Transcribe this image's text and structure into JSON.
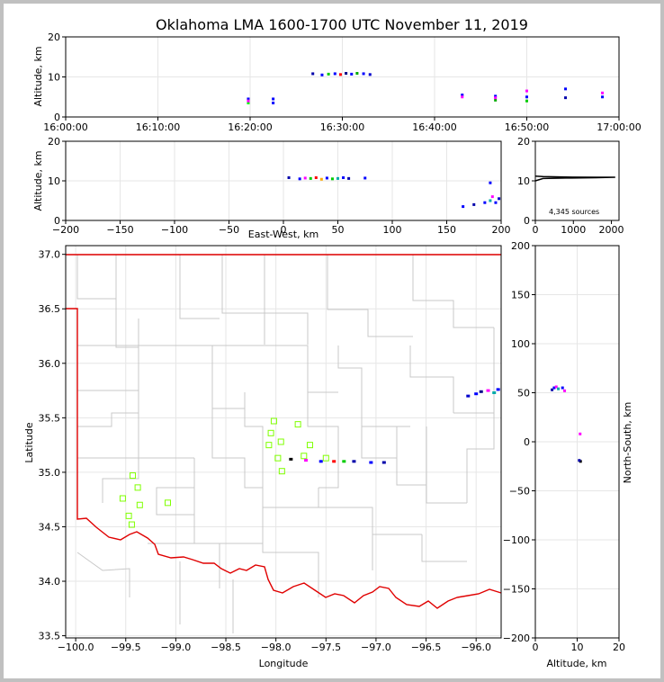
{
  "chart_data": [
    {
      "type": "scatter",
      "id": "time_altitude",
      "title": "Oklahoma LMA 1600-1700 UTC November 11, 2019",
      "ylabel": "Altitude, km",
      "xlabel": "",
      "xticks": [
        "16:00:00",
        "16:10:00",
        "16:20:00",
        "16:30:00",
        "16:40:00",
        "16:50:00",
        "17:00:00"
      ],
      "xlim_minutes": [
        0,
        60
      ],
      "ylim": [
        0,
        20
      ],
      "yticks": [
        0,
        10,
        20
      ],
      "grid": true,
      "points": [
        {
          "t": 19.8,
          "z": 4.5,
          "color": "#0000ff"
        },
        {
          "t": 19.8,
          "z": 3.5,
          "color": "#00ff00"
        },
        {
          "t": 19.8,
          "z": 4.0,
          "color": "#ff00ff"
        },
        {
          "t": 22.5,
          "z": 4.5,
          "color": "#0000ff"
        },
        {
          "t": 22.5,
          "z": 3.5,
          "color": "#0000ff"
        },
        {
          "t": 26.8,
          "z": 10.8,
          "color": "#0000aa"
        },
        {
          "t": 27.8,
          "z": 10.5,
          "color": "#0000ff"
        },
        {
          "t": 28.5,
          "z": 10.7,
          "color": "#00cc00"
        },
        {
          "t": 29.2,
          "z": 10.8,
          "color": "#0000ff"
        },
        {
          "t": 29.8,
          "z": 10.6,
          "color": "#ff0000"
        },
        {
          "t": 30.4,
          "z": 10.9,
          "color": "#000088"
        },
        {
          "t": 31.0,
          "z": 10.7,
          "color": "#0000ff"
        },
        {
          "t": 31.6,
          "z": 10.9,
          "color": "#00aa00"
        },
        {
          "t": 32.3,
          "z": 10.8,
          "color": "#0000ff"
        },
        {
          "t": 33.0,
          "z": 10.6,
          "color": "#0000cc"
        },
        {
          "t": 43.0,
          "z": 5.5,
          "color": "#0000ff"
        },
        {
          "t": 43.0,
          "z": 5.0,
          "color": "#ff00ff"
        },
        {
          "t": 46.6,
          "z": 5.2,
          "color": "#0000ff"
        },
        {
          "t": 46.6,
          "z": 4.2,
          "color": "#00aa00"
        },
        {
          "t": 46.6,
          "z": 4.8,
          "color": "#ff00ff"
        },
        {
          "t": 50.0,
          "z": 6.5,
          "color": "#ff00ff"
        },
        {
          "t": 50.0,
          "z": 5.0,
          "color": "#0000ff"
        },
        {
          "t": 50.0,
          "z": 4.0,
          "color": "#00cc00"
        },
        {
          "t": 54.2,
          "z": 7.0,
          "color": "#0000ff"
        },
        {
          "t": 54.2,
          "z": 4.8,
          "color": "#0000aa"
        },
        {
          "t": 58.2,
          "z": 6.0,
          "color": "#ff00ff"
        },
        {
          "t": 58.2,
          "z": 5.0,
          "color": "#0000ff"
        }
      ]
    },
    {
      "type": "scatter",
      "id": "ew_altitude",
      "xlabel": "East-West, km",
      "ylabel": "Altitude, km",
      "xlim": [
        -200,
        200
      ],
      "xticks": [
        -200,
        -150,
        -100,
        -50,
        0,
        50,
        100,
        150,
        200
      ],
      "ylim": [
        0,
        20
      ],
      "yticks": [
        0,
        10,
        20
      ],
      "grid": true,
      "points": [
        {
          "x": 5,
          "z": 10.8,
          "color": "#0000aa"
        },
        {
          "x": 15,
          "z": 10.5,
          "color": "#0000ff"
        },
        {
          "x": 20,
          "z": 10.7,
          "color": "#ff00ff"
        },
        {
          "x": 25,
          "z": 10.6,
          "color": "#00cc00"
        },
        {
          "x": 30,
          "z": 10.8,
          "color": "#ff0000"
        },
        {
          "x": 35,
          "z": 10.4,
          "color": "#ffaa00"
        },
        {
          "x": 40,
          "z": 10.7,
          "color": "#0000ff"
        },
        {
          "x": 45,
          "z": 10.5,
          "color": "#00cc00"
        },
        {
          "x": 50,
          "z": 10.6,
          "color": "#00aaaa"
        },
        {
          "x": 55,
          "z": 10.8,
          "color": "#0000ff"
        },
        {
          "x": 60,
          "z": 10.6,
          "color": "#0000aa"
        },
        {
          "x": 75,
          "z": 10.7,
          "color": "#0000ff"
        },
        {
          "x": 165,
          "z": 3.5,
          "color": "#0000ff"
        },
        {
          "x": 175,
          "z": 4.0,
          "color": "#0000aa"
        },
        {
          "x": 185,
          "z": 4.5,
          "color": "#0000ff"
        },
        {
          "x": 190,
          "z": 5.0,
          "color": "#00aaaa"
        },
        {
          "x": 192,
          "z": 6.0,
          "color": "#ff00ff"
        },
        {
          "x": 195,
          "z": 4.5,
          "color": "#0000ff"
        },
        {
          "x": 190,
          "z": 9.5,
          "color": "#0000ff"
        },
        {
          "x": 198,
          "z": 5.5,
          "color": "#0000cc"
        }
      ]
    },
    {
      "type": "line",
      "id": "histogram",
      "annotation": "4,345 sources",
      "xlim": [
        0,
        2200
      ],
      "xticks": [
        0,
        1000,
        2000
      ],
      "ylim": [
        0,
        20
      ],
      "yticks": [
        0,
        10,
        20
      ],
      "profile": [
        [
          0,
          10.0
        ],
        [
          200,
          10.6
        ],
        [
          800,
          10.7
        ],
        [
          1600,
          10.8
        ],
        [
          2100,
          10.9
        ],
        [
          1600,
          10.9
        ],
        [
          800,
          10.95
        ],
        [
          200,
          11.1
        ],
        [
          0,
          11.2
        ]
      ]
    },
    {
      "type": "scatter",
      "id": "plan_view",
      "xlabel": "Longitude",
      "ylabel": "Latitude",
      "xlim": [
        -100.1,
        -95.75
      ],
      "xticks": [
        -100.0,
        -99.5,
        -99.0,
        -98.5,
        -98.0,
        -97.5,
        -97.0,
        -96.5,
        -96.0
      ],
      "ylim": [
        33.48,
        37.08
      ],
      "yticks": [
        33.5,
        34.0,
        34.5,
        35.0,
        35.5,
        36.0,
        36.5,
        37.0
      ],
      "grid": true,
      "stations": [
        [
          -99.53,
          34.76
        ],
        [
          -99.47,
          34.6
        ],
        [
          -99.44,
          34.52
        ],
        [
          -99.43,
          34.97
        ],
        [
          -99.38,
          34.86
        ],
        [
          -99.36,
          34.7
        ],
        [
          -99.08,
          34.72
        ],
        [
          -98.02,
          35.47
        ],
        [
          -98.05,
          35.36
        ],
        [
          -98.07,
          35.25
        ],
        [
          -97.98,
          35.13
        ],
        [
          -97.95,
          35.28
        ],
        [
          -97.94,
          35.01
        ],
        [
          -97.78,
          35.44
        ],
        [
          -97.72,
          35.15
        ],
        [
          -97.66,
          35.25
        ],
        [
          -97.5,
          35.13
        ]
      ],
      "points": [
        {
          "lon": -97.85,
          "lat": 35.12,
          "color": "#000000"
        },
        {
          "lon": -97.7,
          "lat": 35.11,
          "color": "#ff00ff"
        },
        {
          "lon": -97.55,
          "lat": 35.1,
          "color": "#0000ff"
        },
        {
          "lon": -97.42,
          "lat": 35.1,
          "color": "#ff0000"
        },
        {
          "lon": -97.32,
          "lat": 35.1,
          "color": "#00cc00"
        },
        {
          "lon": -97.22,
          "lat": 35.1,
          "color": "#0000aa"
        },
        {
          "lon": -97.05,
          "lat": 35.09,
          "color": "#0000ff"
        },
        {
          "lon": -96.92,
          "lat": 35.09,
          "color": "#0000aa"
        },
        {
          "lon": -96.0,
          "lat": 35.72,
          "color": "#0000ff"
        },
        {
          "lon": -95.95,
          "lat": 35.74,
          "color": "#000088"
        },
        {
          "lon": -95.88,
          "lat": 35.75,
          "color": "#ff00ff"
        },
        {
          "lon": -95.82,
          "lat": 35.73,
          "color": "#00aaaa"
        },
        {
          "lon": -95.78,
          "lat": 35.76,
          "color": "#0000ff"
        },
        {
          "lon": -96.08,
          "lat": 35.7,
          "color": "#0000cc"
        }
      ]
    },
    {
      "type": "scatter",
      "id": "altitude_ns",
      "xlabel": "Altitude, km",
      "ylabel": "North-South, km",
      "xlim": [
        0,
        20
      ],
      "xticks": [
        0,
        10,
        20
      ],
      "ylim": [
        -200,
        200
      ],
      "yticks": [
        -200,
        -150,
        -100,
        -50,
        0,
        50,
        100,
        150,
        200
      ],
      "grid": true,
      "points": [
        {
          "z": 4.5,
          "y": 55,
          "color": "#0000ff"
        },
        {
          "z": 5.0,
          "y": 56,
          "color": "#ff00ff"
        },
        {
          "z": 5.5,
          "y": 54,
          "color": "#00aaaa"
        },
        {
          "z": 4.0,
          "y": 53,
          "color": "#0000aa"
        },
        {
          "z": 6.5,
          "y": 55,
          "color": "#0000ff"
        },
        {
          "z": 7.0,
          "y": 52,
          "color": "#ff00ff"
        },
        {
          "z": 10.8,
          "y": -20,
          "color": "#000000"
        },
        {
          "z": 10.5,
          "y": -19,
          "color": "#0000aa"
        },
        {
          "z": 10.7,
          "y": 8,
          "color": "#ff00ff"
        }
      ]
    }
  ]
}
